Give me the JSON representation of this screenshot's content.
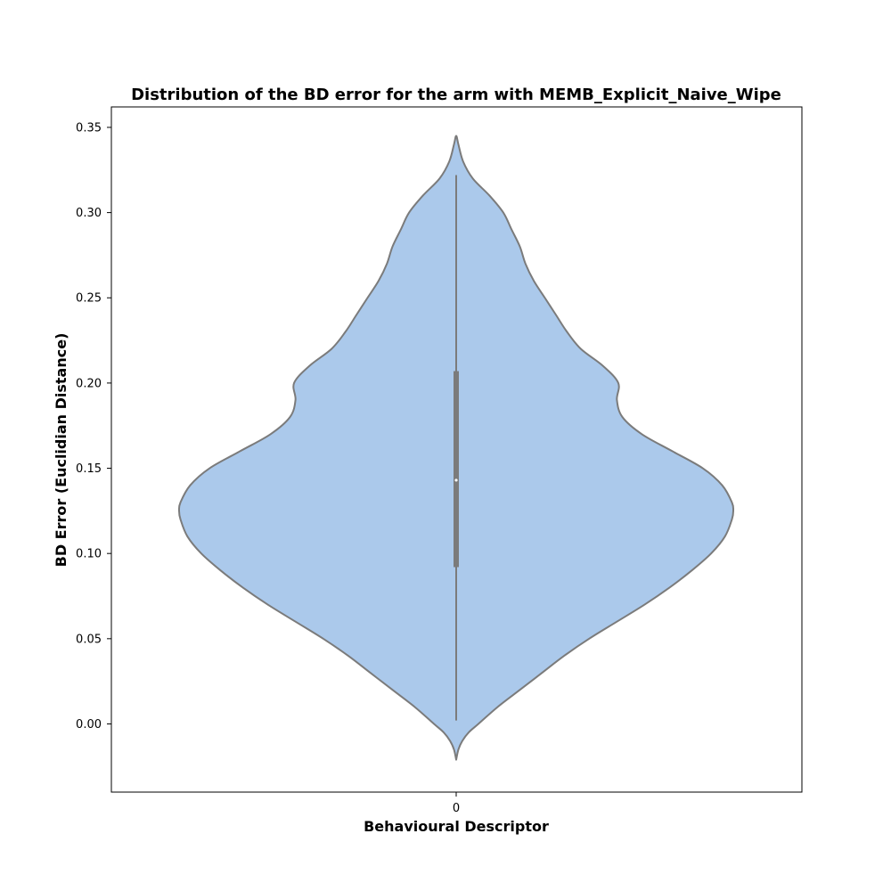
{
  "chart_data": {
    "type": "violin",
    "title": "Distribution of the BD error for the arm with MEMB_Explicit_Naive_Wipe",
    "xlabel": "Behavioural Descriptor",
    "ylabel": "BD Error (Euclidian Distance)",
    "categories": [
      "0"
    ],
    "ylim": [
      -0.04,
      0.362
    ],
    "yticks": [
      0.0,
      0.05,
      0.1,
      0.15,
      0.2,
      0.25,
      0.3,
      0.35
    ],
    "ytick_labels": [
      "0.00",
      "0.05",
      "0.10",
      "0.15",
      "0.20",
      "0.25",
      "0.30",
      "0.35"
    ],
    "grid": false,
    "violin": {
      "fill_color": "#abc9eb",
      "edge_color": "#7b7b7b",
      "density_profile": [
        {
          "y": -0.021,
          "w": 0.0
        },
        {
          "y": -0.015,
          "w": 0.008
        },
        {
          "y": -0.01,
          "w": 0.022
        },
        {
          "y": -0.005,
          "w": 0.045
        },
        {
          "y": 0.0,
          "w": 0.08
        },
        {
          "y": 0.01,
          "w": 0.15
        },
        {
          "y": 0.02,
          "w": 0.23
        },
        {
          "y": 0.03,
          "w": 0.31
        },
        {
          "y": 0.04,
          "w": 0.39
        },
        {
          "y": 0.05,
          "w": 0.48
        },
        {
          "y": 0.06,
          "w": 0.58
        },
        {
          "y": 0.07,
          "w": 0.68
        },
        {
          "y": 0.08,
          "w": 0.77
        },
        {
          "y": 0.09,
          "w": 0.85
        },
        {
          "y": 0.1,
          "w": 0.92
        },
        {
          "y": 0.11,
          "w": 0.97
        },
        {
          "y": 0.12,
          "w": 0.995
        },
        {
          "y": 0.125,
          "w": 1.0
        },
        {
          "y": 0.13,
          "w": 0.995
        },
        {
          "y": 0.14,
          "w": 0.96
        },
        {
          "y": 0.15,
          "w": 0.89
        },
        {
          "y": 0.16,
          "w": 0.78
        },
        {
          "y": 0.17,
          "w": 0.67
        },
        {
          "y": 0.18,
          "w": 0.6
        },
        {
          "y": 0.19,
          "w": 0.58
        },
        {
          "y": 0.2,
          "w": 0.585
        },
        {
          "y": 0.21,
          "w": 0.53
        },
        {
          "y": 0.22,
          "w": 0.45
        },
        {
          "y": 0.23,
          "w": 0.4
        },
        {
          "y": 0.24,
          "w": 0.36
        },
        {
          "y": 0.25,
          "w": 0.32
        },
        {
          "y": 0.26,
          "w": 0.28
        },
        {
          "y": 0.27,
          "w": 0.25
        },
        {
          "y": 0.28,
          "w": 0.23
        },
        {
          "y": 0.29,
          "w": 0.2
        },
        {
          "y": 0.3,
          "w": 0.17
        },
        {
          "y": 0.31,
          "w": 0.12
        },
        {
          "y": 0.32,
          "w": 0.06
        },
        {
          "y": 0.33,
          "w": 0.025
        },
        {
          "y": 0.34,
          "w": 0.008
        },
        {
          "y": 0.345,
          "w": 0.0
        }
      ],
      "whisker_low": 0.002,
      "whisker_high": 0.322,
      "q1": 0.092,
      "median": 0.143,
      "q3": 0.207
    }
  }
}
